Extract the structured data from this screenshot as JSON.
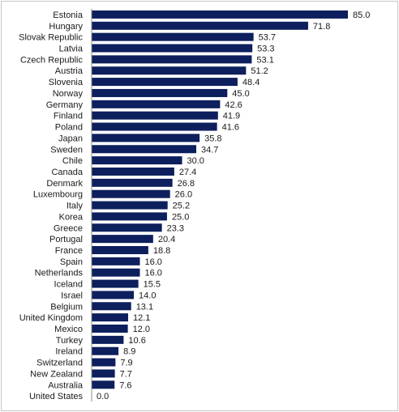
{
  "chart_data": {
    "type": "bar",
    "orientation": "horizontal",
    "title": "",
    "xlabel": "",
    "ylabel": "",
    "xlim": [
      0,
      85
    ],
    "grid": false,
    "legend": "none",
    "bar_color": "#0d1f5c",
    "categories": [
      "Estonia",
      "Hungary",
      "Slovak Republic",
      "Latvia",
      "Czech Republic",
      "Austria",
      "Slovenia",
      "Norway",
      "Germany",
      "Finland",
      "Poland",
      "Japan",
      "Sweden",
      "Chile",
      "Canada",
      "Denmark",
      "Luxembourg",
      "Italy",
      "Korea",
      "Greece",
      "Portugal",
      "France",
      "Spain",
      "Netherlands",
      "Iceland",
      "Israel",
      "Belgium",
      "United Kingdom",
      "Mexico",
      "Turkey",
      "Ireland",
      "Switzerland",
      "New Zealand",
      "Australia",
      "United States"
    ],
    "values": [
      85.0,
      71.8,
      53.7,
      53.3,
      53.1,
      51.2,
      48.4,
      45.0,
      42.6,
      41.9,
      41.6,
      35.8,
      34.7,
      30.0,
      27.4,
      26.8,
      26.0,
      25.2,
      25.0,
      23.3,
      20.4,
      18.8,
      16.0,
      16.0,
      15.5,
      14.0,
      13.1,
      12.1,
      12.0,
      10.6,
      8.9,
      7.9,
      7.7,
      7.6,
      0.0
    ],
    "value_labels": [
      "85.0",
      "71.8",
      "53.7",
      "53.3",
      "53.1",
      "51.2",
      "48.4",
      "45.0",
      "42.6",
      "41.9",
      "41.6",
      "35.8",
      "34.7",
      "30.0",
      "27.4",
      "26.8",
      "26.0",
      "25.2",
      "25.0",
      "23.3",
      "20.4",
      "18.8",
      "16.0",
      "16.0",
      "15.5",
      "14.0",
      "13.1",
      "12.1",
      "12.0",
      "10.6",
      "8.9",
      "7.9",
      "7.7",
      "7.6",
      "0.0"
    ]
  }
}
